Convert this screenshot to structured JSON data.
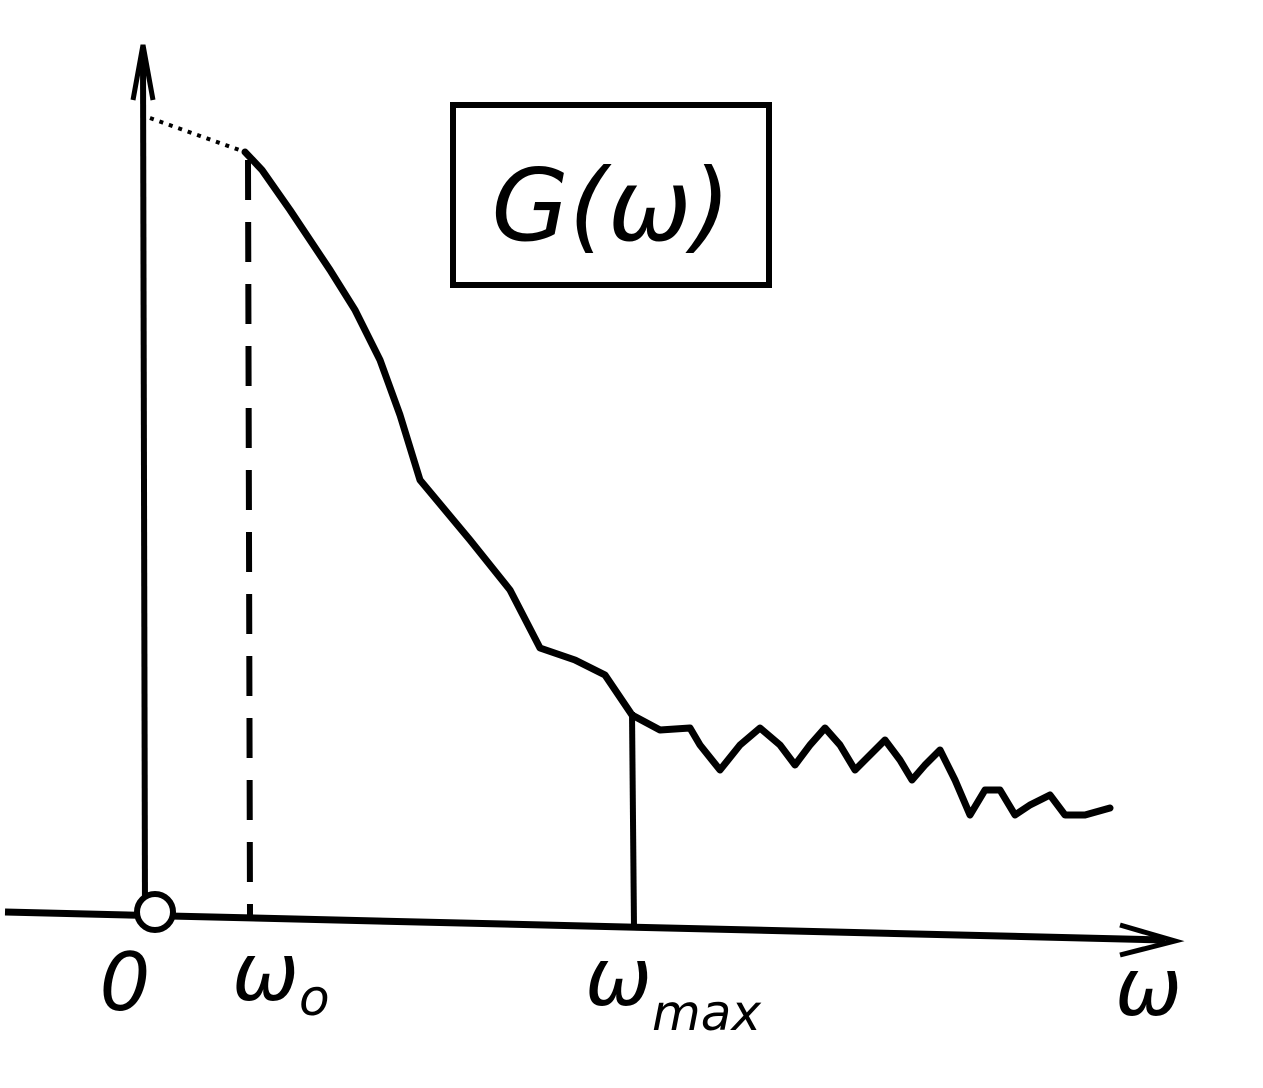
{
  "box_label": "G(ω)",
  "axis_labels": {
    "origin": "0",
    "w0": {
      "main": "ω",
      "sub": "o"
    },
    "wmax": {
      "main": "ω",
      "sub": "max"
    },
    "axis": "ω"
  }
}
